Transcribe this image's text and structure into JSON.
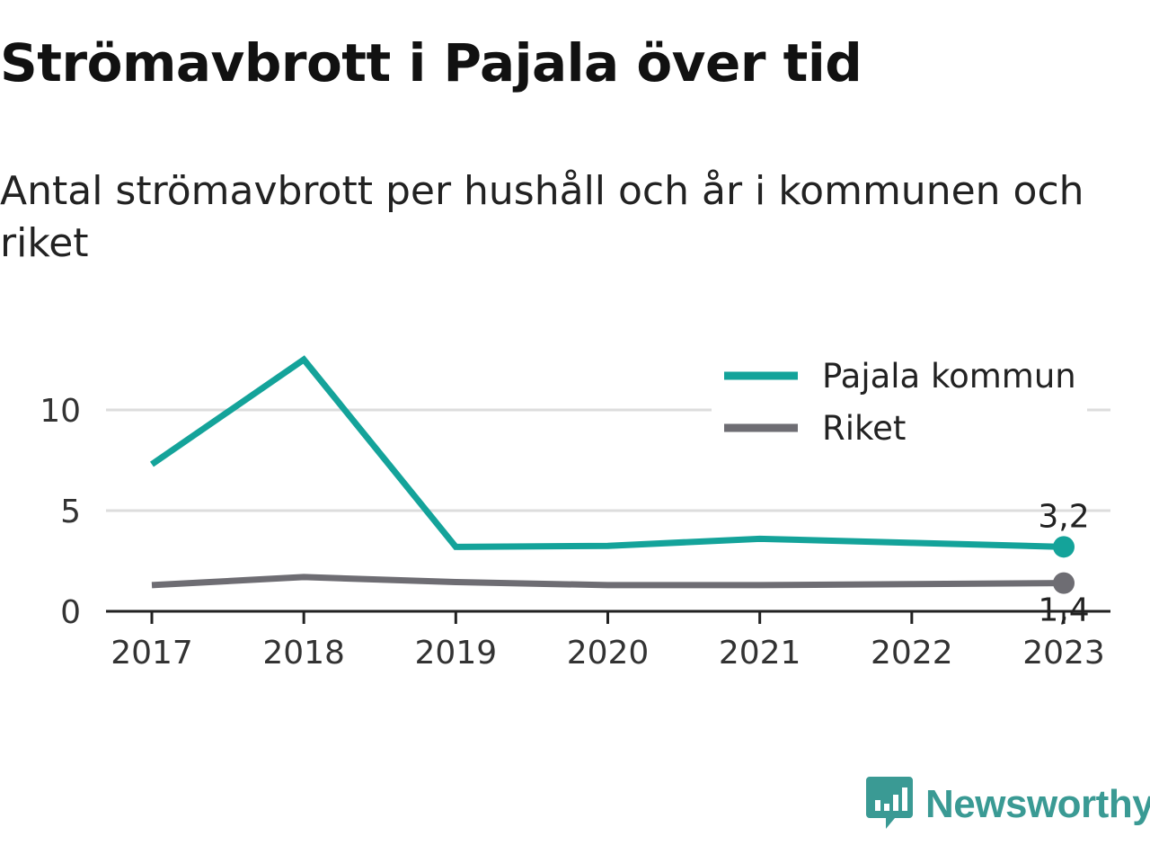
{
  "title": "Strömavbrott i Pajala över tid",
  "subtitle": "Antal strömavbrott per hushåll och år i kommunen och riket",
  "brand": {
    "name": "Newsworthy",
    "icon": "bar-chart-logo-icon",
    "color": "#3a9a94"
  },
  "chart_data": {
    "type": "line",
    "x": [
      "2017",
      "2018",
      "2019",
      "2020",
      "2021",
      "2022",
      "2023"
    ],
    "ylim": [
      0,
      12.5
    ],
    "yticks": [
      0,
      5,
      10
    ],
    "grid": true,
    "legend_position": "top-right",
    "series": [
      {
        "name": "Pajala kommun",
        "color": "#14a39a",
        "values": [
          7.3,
          12.5,
          3.2,
          3.25,
          3.6,
          3.4,
          3.2
        ],
        "end_label": "3,2"
      },
      {
        "name": "Riket",
        "color": "#6e6d73",
        "values": [
          1.3,
          1.7,
          1.45,
          1.3,
          1.3,
          1.35,
          1.4
        ],
        "end_label": "1,4"
      }
    ]
  }
}
